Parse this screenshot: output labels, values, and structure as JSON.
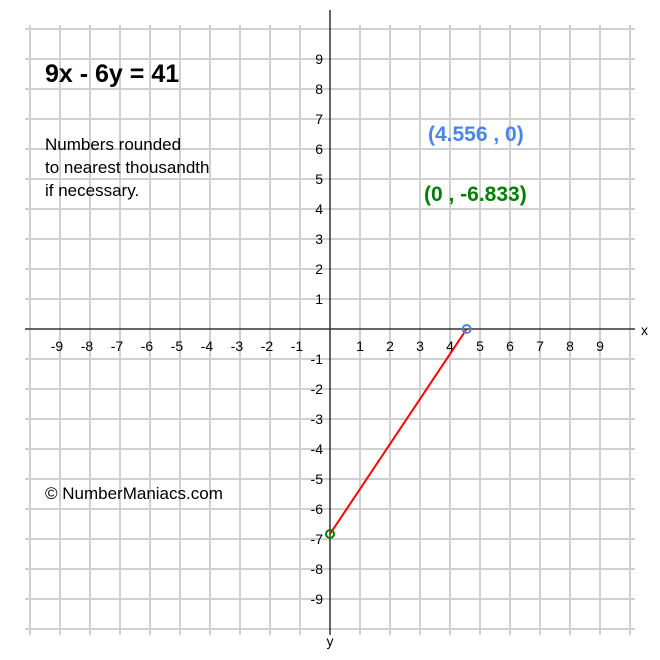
{
  "title": "9x - 6y = 41",
  "note_lines": [
    "Numbers rounded",
    "to nearest thousandth",
    "if necessary."
  ],
  "copyright": "© NumberManiacs.com",
  "colors": {
    "line": "#ff0000",
    "x_intercept": "#4a86e8",
    "y_intercept": "#008000",
    "grid": "#d0d0d0",
    "axis": "#333333"
  },
  "chart_data": {
    "type": "line",
    "xlabel": "x",
    "ylabel": "y",
    "xlim": [
      -10,
      10
    ],
    "ylim": [
      -10,
      10
    ],
    "grid": true,
    "x_ticks": [
      -9,
      -8,
      -7,
      -6,
      -5,
      -4,
      -3,
      -2,
      -1,
      1,
      2,
      3,
      4,
      5,
      6,
      7,
      8,
      9
    ],
    "y_ticks": [
      9,
      8,
      7,
      6,
      5,
      4,
      3,
      2,
      1,
      -1,
      -2,
      -3,
      -4,
      -5,
      -6,
      -7,
      -8,
      -9
    ],
    "segment": [
      {
        "x": 4.556,
        "y": 0
      },
      {
        "x": 0,
        "y": -6.833
      }
    ],
    "annotations": [
      {
        "text": "(4.556 , 0)",
        "x": 4.556,
        "y": 0,
        "color": "#4a86e8"
      },
      {
        "text": "(0 , -6.833)",
        "x": 0,
        "y": -6.833,
        "color": "#008000"
      }
    ]
  }
}
